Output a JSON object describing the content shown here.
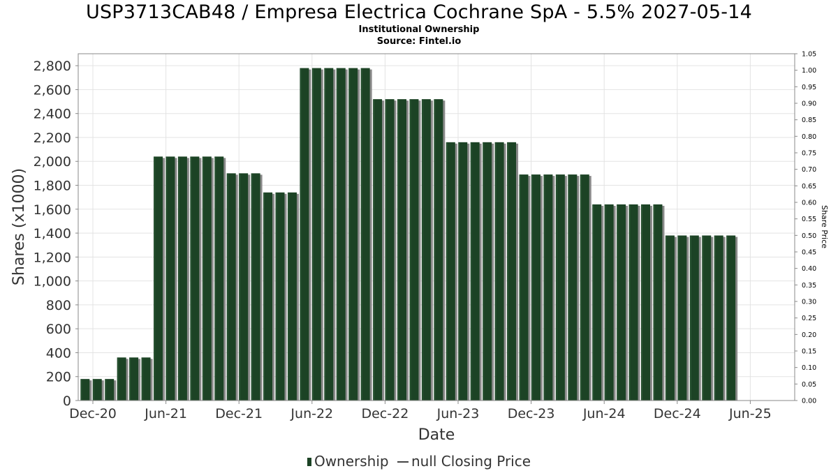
{
  "chart": {
    "title": "USP3713CAB48 / Empresa Electrica Cochrane SpA - 5.5% 2027-05-14",
    "subtitle": "Institutional Ownership",
    "source": "Source: Fintel.io"
  },
  "legend": {
    "ownership_label": "Ownership",
    "price_label": "null Closing Price"
  },
  "colors": {
    "bar": "#1c4325",
    "bar_shadow": "#8a8a8a",
    "grid": "#e3e3e3",
    "axis": "#888888"
  },
  "chart_data": {
    "type": "bar",
    "xlabel": "Date",
    "ylabel": "Shares (x1000)",
    "y2label": "Share Price",
    "ylim": [
      0,
      2900
    ],
    "y2lim": [
      0,
      1.05
    ],
    "y_ticks": [
      "0",
      "200",
      "400",
      "600",
      "800",
      "1,000",
      "1,200",
      "1,400",
      "1,600",
      "1,800",
      "2,000",
      "2,200",
      "2,400",
      "2,600",
      "2,800"
    ],
    "y2_ticks": [
      "0.00",
      "0.05",
      "0.10",
      "0.15",
      "0.20",
      "0.25",
      "0.30",
      "0.35",
      "0.40",
      "0.45",
      "0.50",
      "0.55",
      "0.60",
      "0.65",
      "0.70",
      "0.75",
      "0.80",
      "0.85",
      "0.90",
      "0.95",
      "1.00",
      "1.05"
    ],
    "x_ticks": [
      "Dec-20",
      "Jun-21",
      "Dec-21",
      "Jun-22",
      "Dec-22",
      "Jun-23",
      "Dec-23",
      "Jun-24",
      "Dec-24",
      "Jun-25"
    ],
    "grid": true,
    "legend_position": "bottom-center",
    "series": [
      {
        "name": "Ownership",
        "values": [
          180,
          180,
          180,
          360,
          360,
          360,
          2040,
          2040,
          2040,
          2040,
          2040,
          2040,
          1900,
          1900,
          1900,
          1740,
          1740,
          1740,
          2780,
          2780,
          2780,
          2780,
          2780,
          2780,
          2520,
          2520,
          2520,
          2520,
          2520,
          2520,
          2160,
          2160,
          2160,
          2160,
          2160,
          2160,
          1890,
          1890,
          1890,
          1890,
          1890,
          1890,
          1640,
          1640,
          1640,
          1640,
          1640,
          1640,
          1380,
          1380,
          1380,
          1380,
          1380,
          1380
        ]
      }
    ]
  }
}
